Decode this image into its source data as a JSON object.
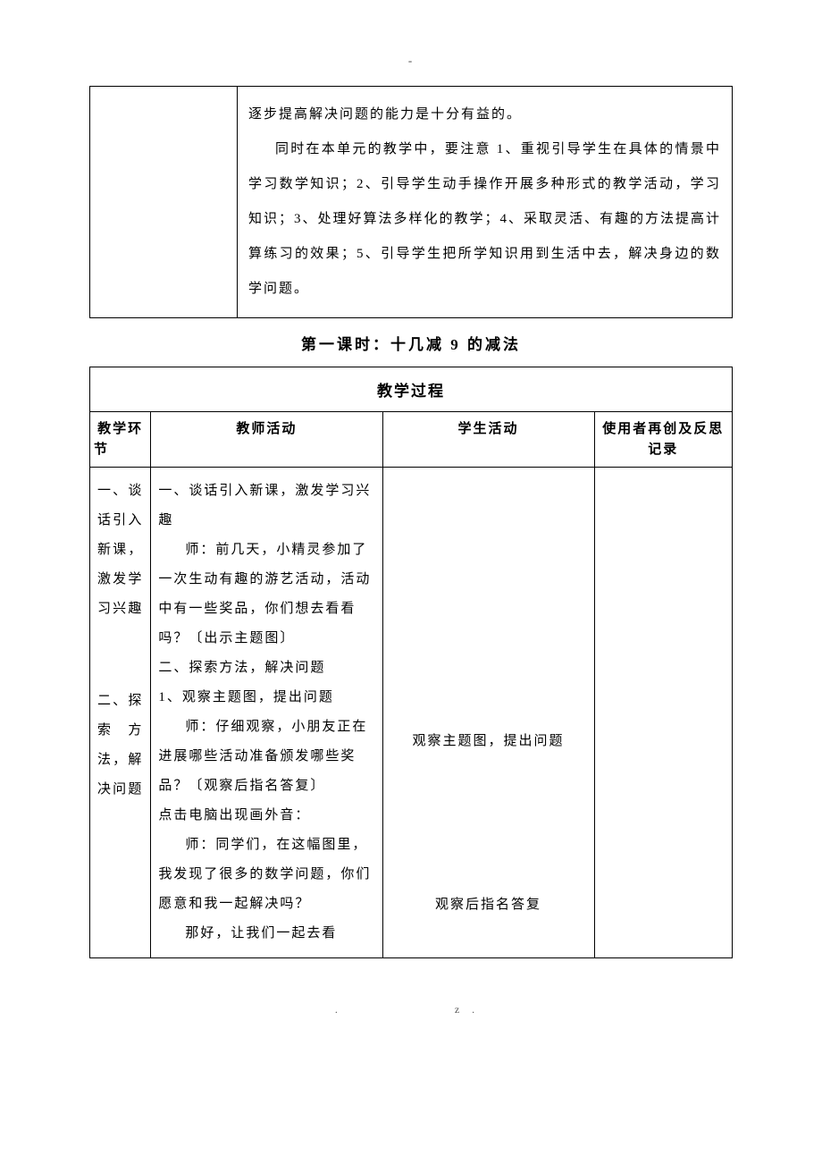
{
  "top_dash": "-",
  "table1": {
    "row": {
      "p1": "逐步提高解决问题的能力是十分有益的。",
      "p2": "同时在本单元的教学中，要注意 1、重视引导学生在具体的情景中学习数学知识；2、引导学生动手操作开展多种形式的教学活动，学习知识；3、处理好算法多样化的教学；4、采取灵活、有趣的方法提高计算练习的效果；5、引导学生把所学知识用到生活中去，解决身边的数学问题。"
    }
  },
  "section_title": "第一课时：十几减 9 的减法",
  "table2": {
    "process_header": "教学过程",
    "headers": {
      "stage": "教学环节",
      "teacher": "教师活动",
      "student": "学生活动",
      "notes": "使用者再创及反思记录"
    },
    "content": {
      "stage1": "一、谈话引入新课，激发学习兴趣",
      "stage2": "二、探索方法，解决问题",
      "teacher_p1": "一、谈话引入新课，激发学习兴趣",
      "teacher_p2": "师：前几天，小精灵参加了一次生动有趣的游艺活动，活动中有一些奖品，你们想去看看吗？〔出示主题图〕",
      "teacher_p3": "二、探索方法，解决问题",
      "teacher_p4": "1、观察主题图，提出问题",
      "teacher_p5": "师：仔细观察，小朋友正在进展哪些活动准备颁发哪些奖品？〔观察后指名答复〕",
      "teacher_p6": "点击电脑出现画外音：",
      "teacher_p7": "师：同学们，在这幅图里，我发现了很多的数学问题，你们愿意和我一起解决吗？",
      "teacher_p8": "那好，让我们一起去看",
      "student_p1": "观察主题图，提出问题",
      "student_p2": "观察后指名答复"
    }
  },
  "footer": {
    "left": ".",
    "right": "z."
  }
}
